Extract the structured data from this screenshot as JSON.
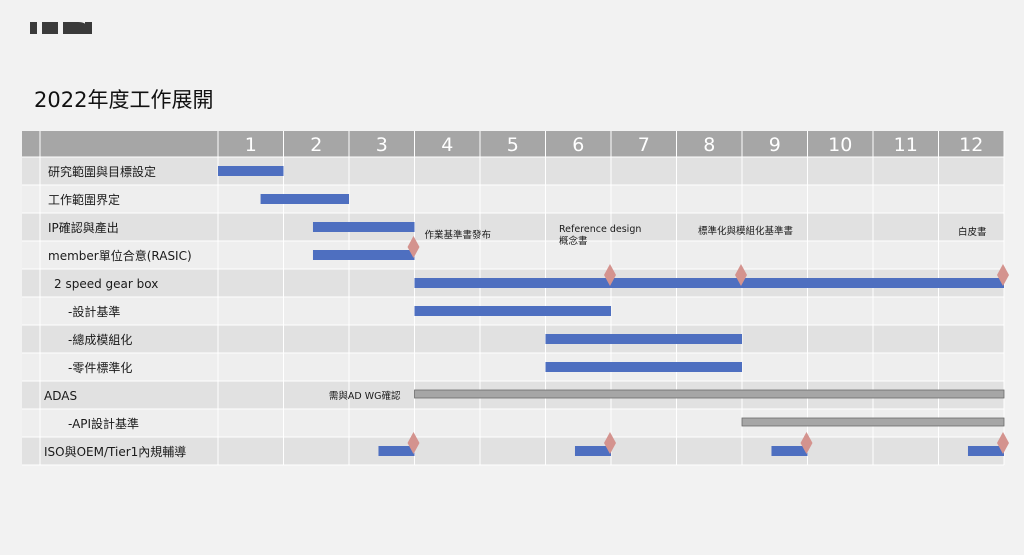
{
  "title": "2022年度工作展開",
  "colors": {
    "header": "#a6a6a6",
    "row_dark": "#e1e1e1",
    "row_light": "#eeeeee",
    "grid": "#ffffff",
    "task_bar": "#4e6fc0",
    "track_bar": "#a6a6a6",
    "milestone": "#d4938e",
    "logo": "#3a3a3a"
  },
  "chart_data": {
    "type": "gantt",
    "x_unit": "month",
    "months": [
      "1",
      "2",
      "3",
      "4",
      "5",
      "6",
      "7",
      "8",
      "9",
      "10",
      "11",
      "12"
    ],
    "tasks": [
      {
        "label": "研究範圍與目標設定",
        "start": 0.0,
        "end": 1.0,
        "style": "task"
      },
      {
        "label": "工作範圍界定",
        "start": 0.65,
        "end": 2.0,
        "style": "task"
      },
      {
        "label": "IP確認與產出",
        "start": 1.45,
        "end": 3.0,
        "style": "task"
      },
      {
        "label": "member單位合意(RASIC)",
        "start": 1.45,
        "end": 3.0,
        "style": "task"
      },
      {
        "label": "2 speed gear box",
        "start": 3.0,
        "end": 12.0,
        "style": "task"
      },
      {
        "label": "-設計基準",
        "start": 3.0,
        "end": 6.0,
        "style": "task"
      },
      {
        "label": "-總成模組化",
        "start": 5.0,
        "end": 8.0,
        "style": "task"
      },
      {
        "label": "-零件標準化",
        "start": 5.0,
        "end": 8.0,
        "style": "task"
      },
      {
        "label": "ADAS",
        "start": 3.0,
        "end": 12.0,
        "style": "track"
      },
      {
        "label": "-API設計基準",
        "start": 8.0,
        "end": 12.0,
        "style": "track"
      },
      {
        "label": "ISO與OEM/Tier1內規輔導",
        "segments": [
          [
            2.45,
            3.0
          ],
          [
            5.45,
            6.0
          ],
          [
            8.45,
            9.0
          ],
          [
            11.45,
            12.0
          ]
        ],
        "style": "task"
      }
    ],
    "milestones": [
      {
        "row": 3,
        "x": 3.0
      },
      {
        "row": 4,
        "x": 6.0
      },
      {
        "row": 4,
        "x": 8.0
      },
      {
        "row": 4,
        "x": 12.0
      },
      {
        "row": 10,
        "x": 3.0
      },
      {
        "row": 10,
        "x": 6.0
      },
      {
        "row": 10,
        "x": 9.0
      },
      {
        "row": 10,
        "x": 12.0
      }
    ],
    "annotations": [
      {
        "text": "作業基準書發布",
        "row": 3,
        "x": 3.0
      },
      {
        "text": "Reference design",
        "row": 3,
        "x": 6.0
      },
      {
        "text": "概念書",
        "row": 3,
        "x": 6.0
      },
      {
        "text": "標準化與模組化基準書",
        "row": 3,
        "x": 8.0
      },
      {
        "text": "白皮書",
        "row": 3,
        "x": 12.0
      },
      {
        "text": "需與AD WG確認",
        "row": 8,
        "x": 3.0
      }
    ]
  }
}
